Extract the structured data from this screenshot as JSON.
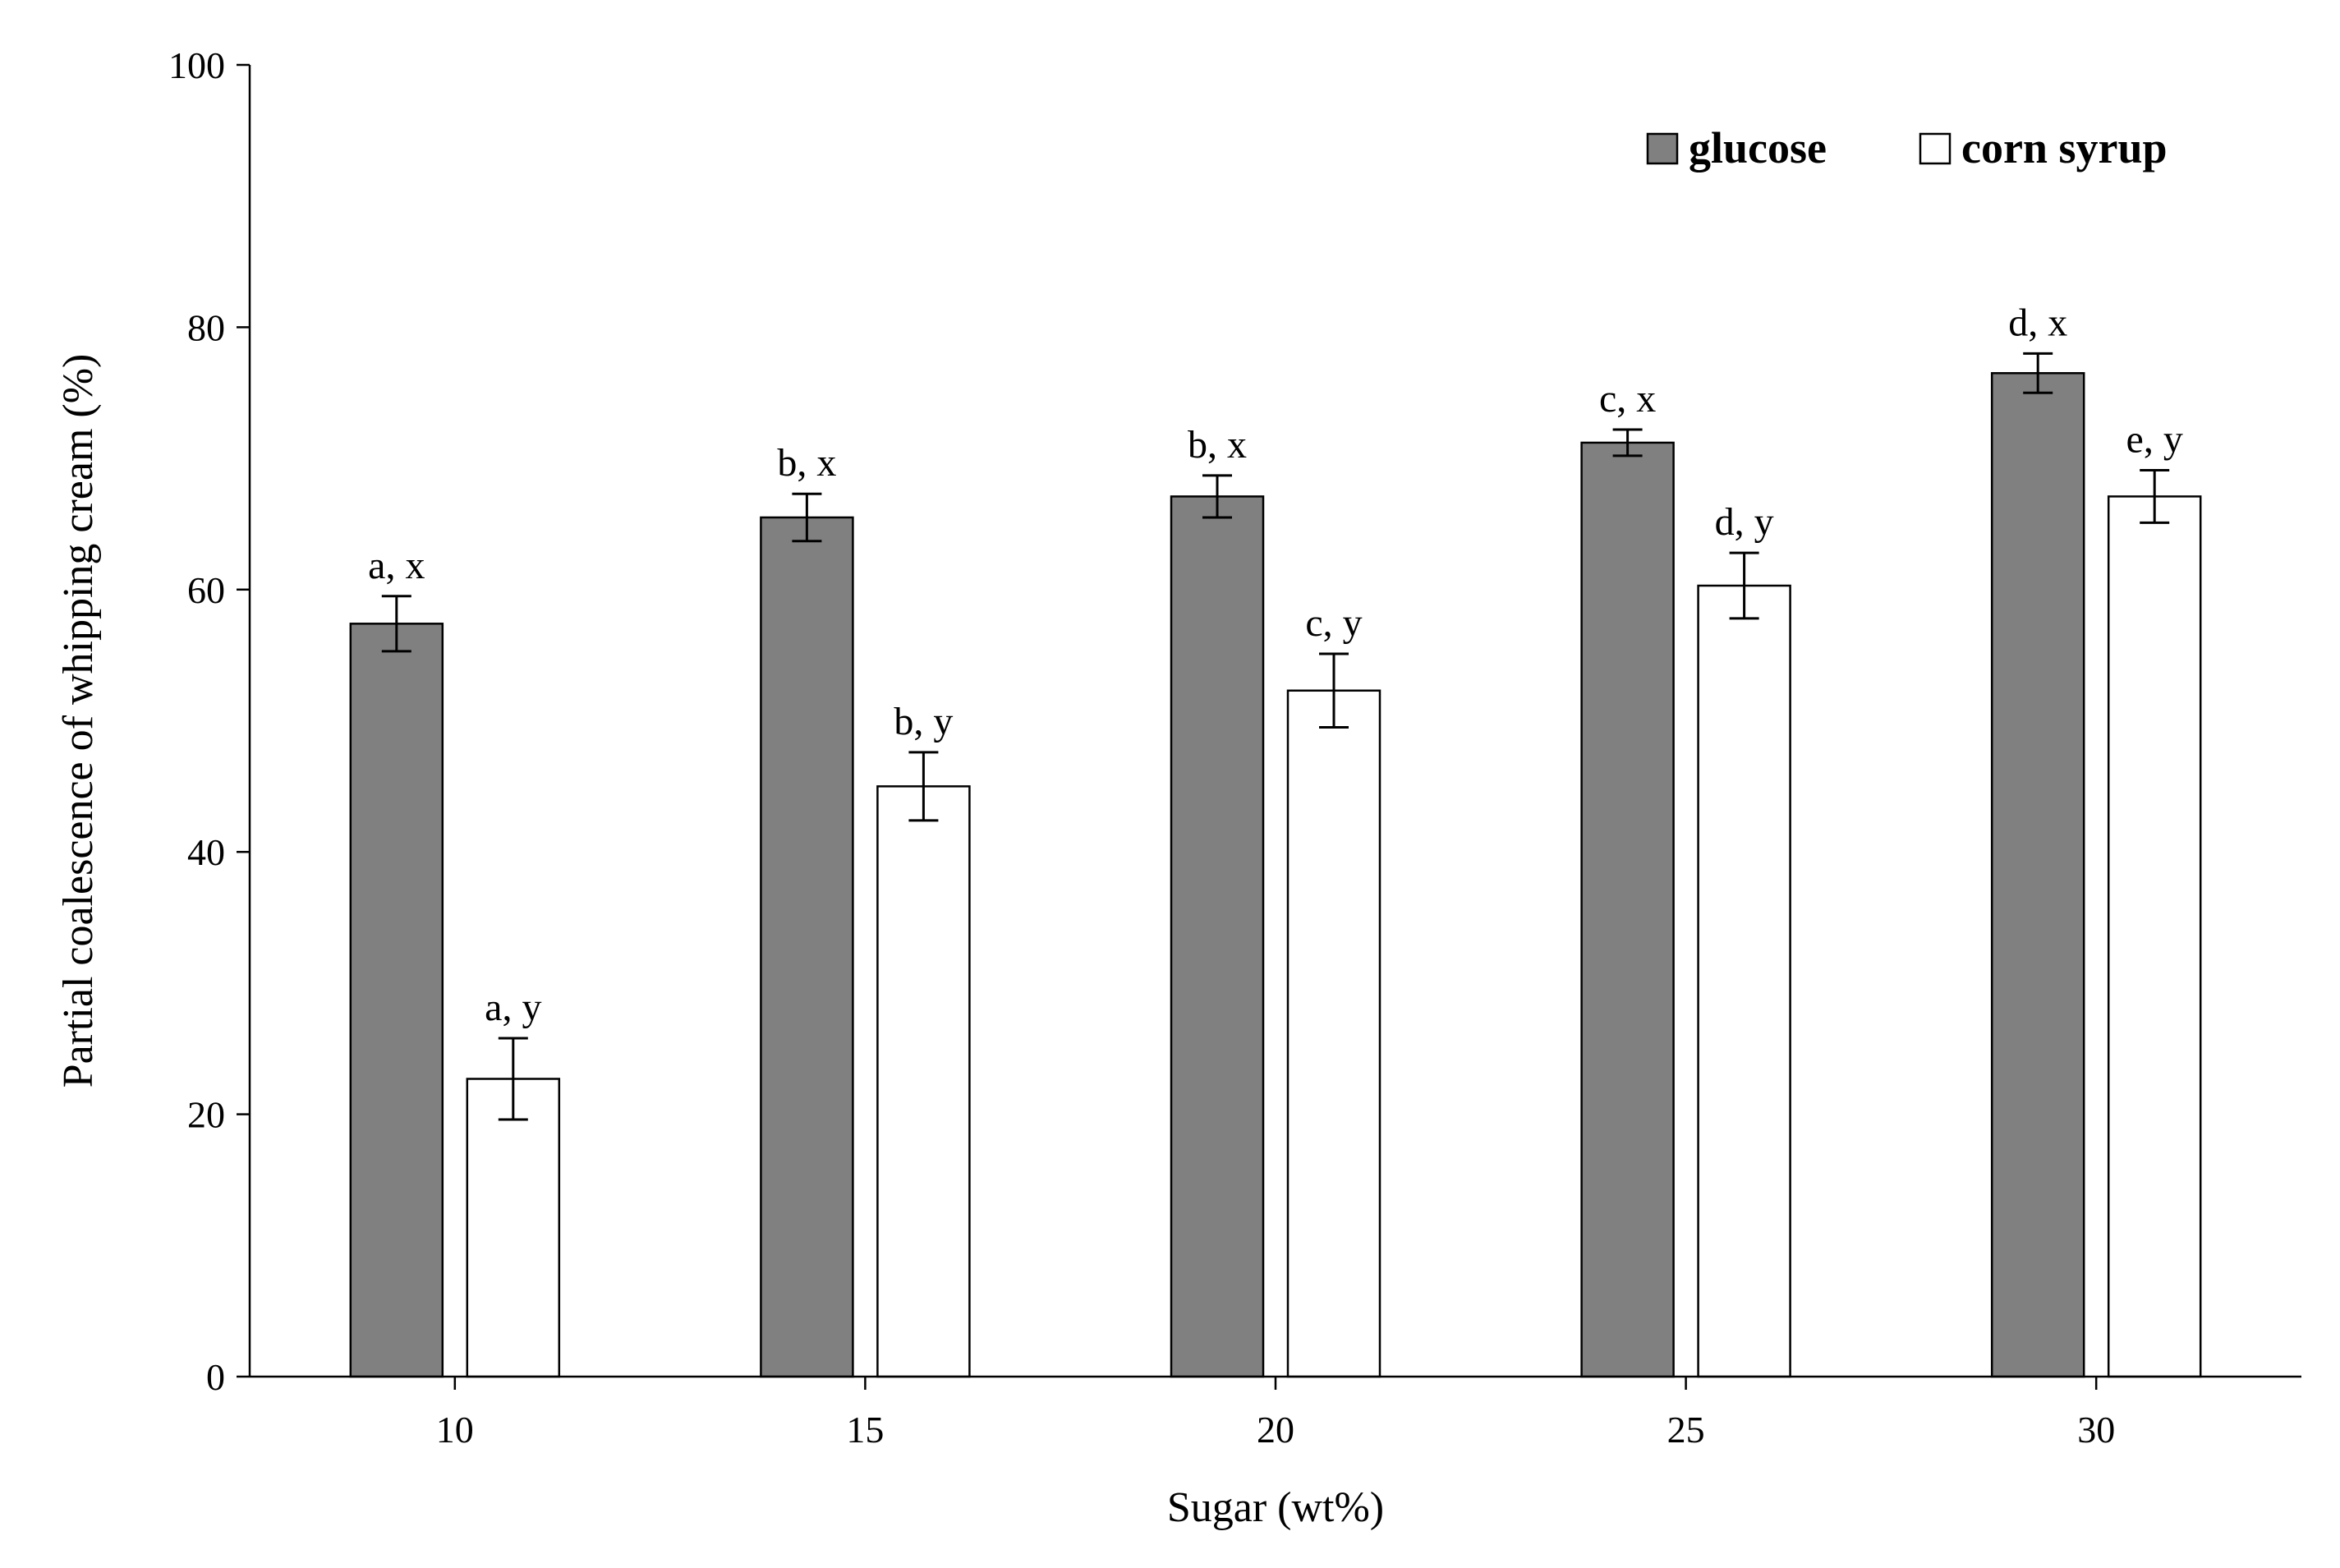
{
  "chart_data": {
    "type": "bar",
    "title": "",
    "xlabel": "Sugar (wt%)",
    "ylabel": "Partial coalescence of whipping cream (%)",
    "ylim": [
      0,
      100
    ],
    "yticks": [
      "0",
      "20",
      "40",
      "60",
      "80",
      "100"
    ],
    "categories": [
      "10",
      "15",
      "20",
      "25",
      "30"
    ],
    "grid": false,
    "legend_position": "top-right",
    "series": [
      {
        "name": "glucose",
        "color": "#808080",
        "values": [
          57.4,
          65.5,
          67.1,
          71.2,
          76.5
        ],
        "errors": [
          2.1,
          1.8,
          1.6,
          1.0,
          1.5
        ],
        "labels": [
          "a, x",
          "b, x",
          "b, x",
          "c, x",
          "d, x"
        ]
      },
      {
        "name": "corn syrup",
        "color": "#ffffff",
        "values": [
          22.7,
          45.0,
          52.3,
          60.3,
          67.1
        ],
        "errors": [
          3.1,
          2.6,
          2.8,
          2.5,
          2.0
        ],
        "labels": [
          "a, y",
          "b, y",
          "c, y",
          "d, y",
          "e, y"
        ]
      }
    ]
  }
}
